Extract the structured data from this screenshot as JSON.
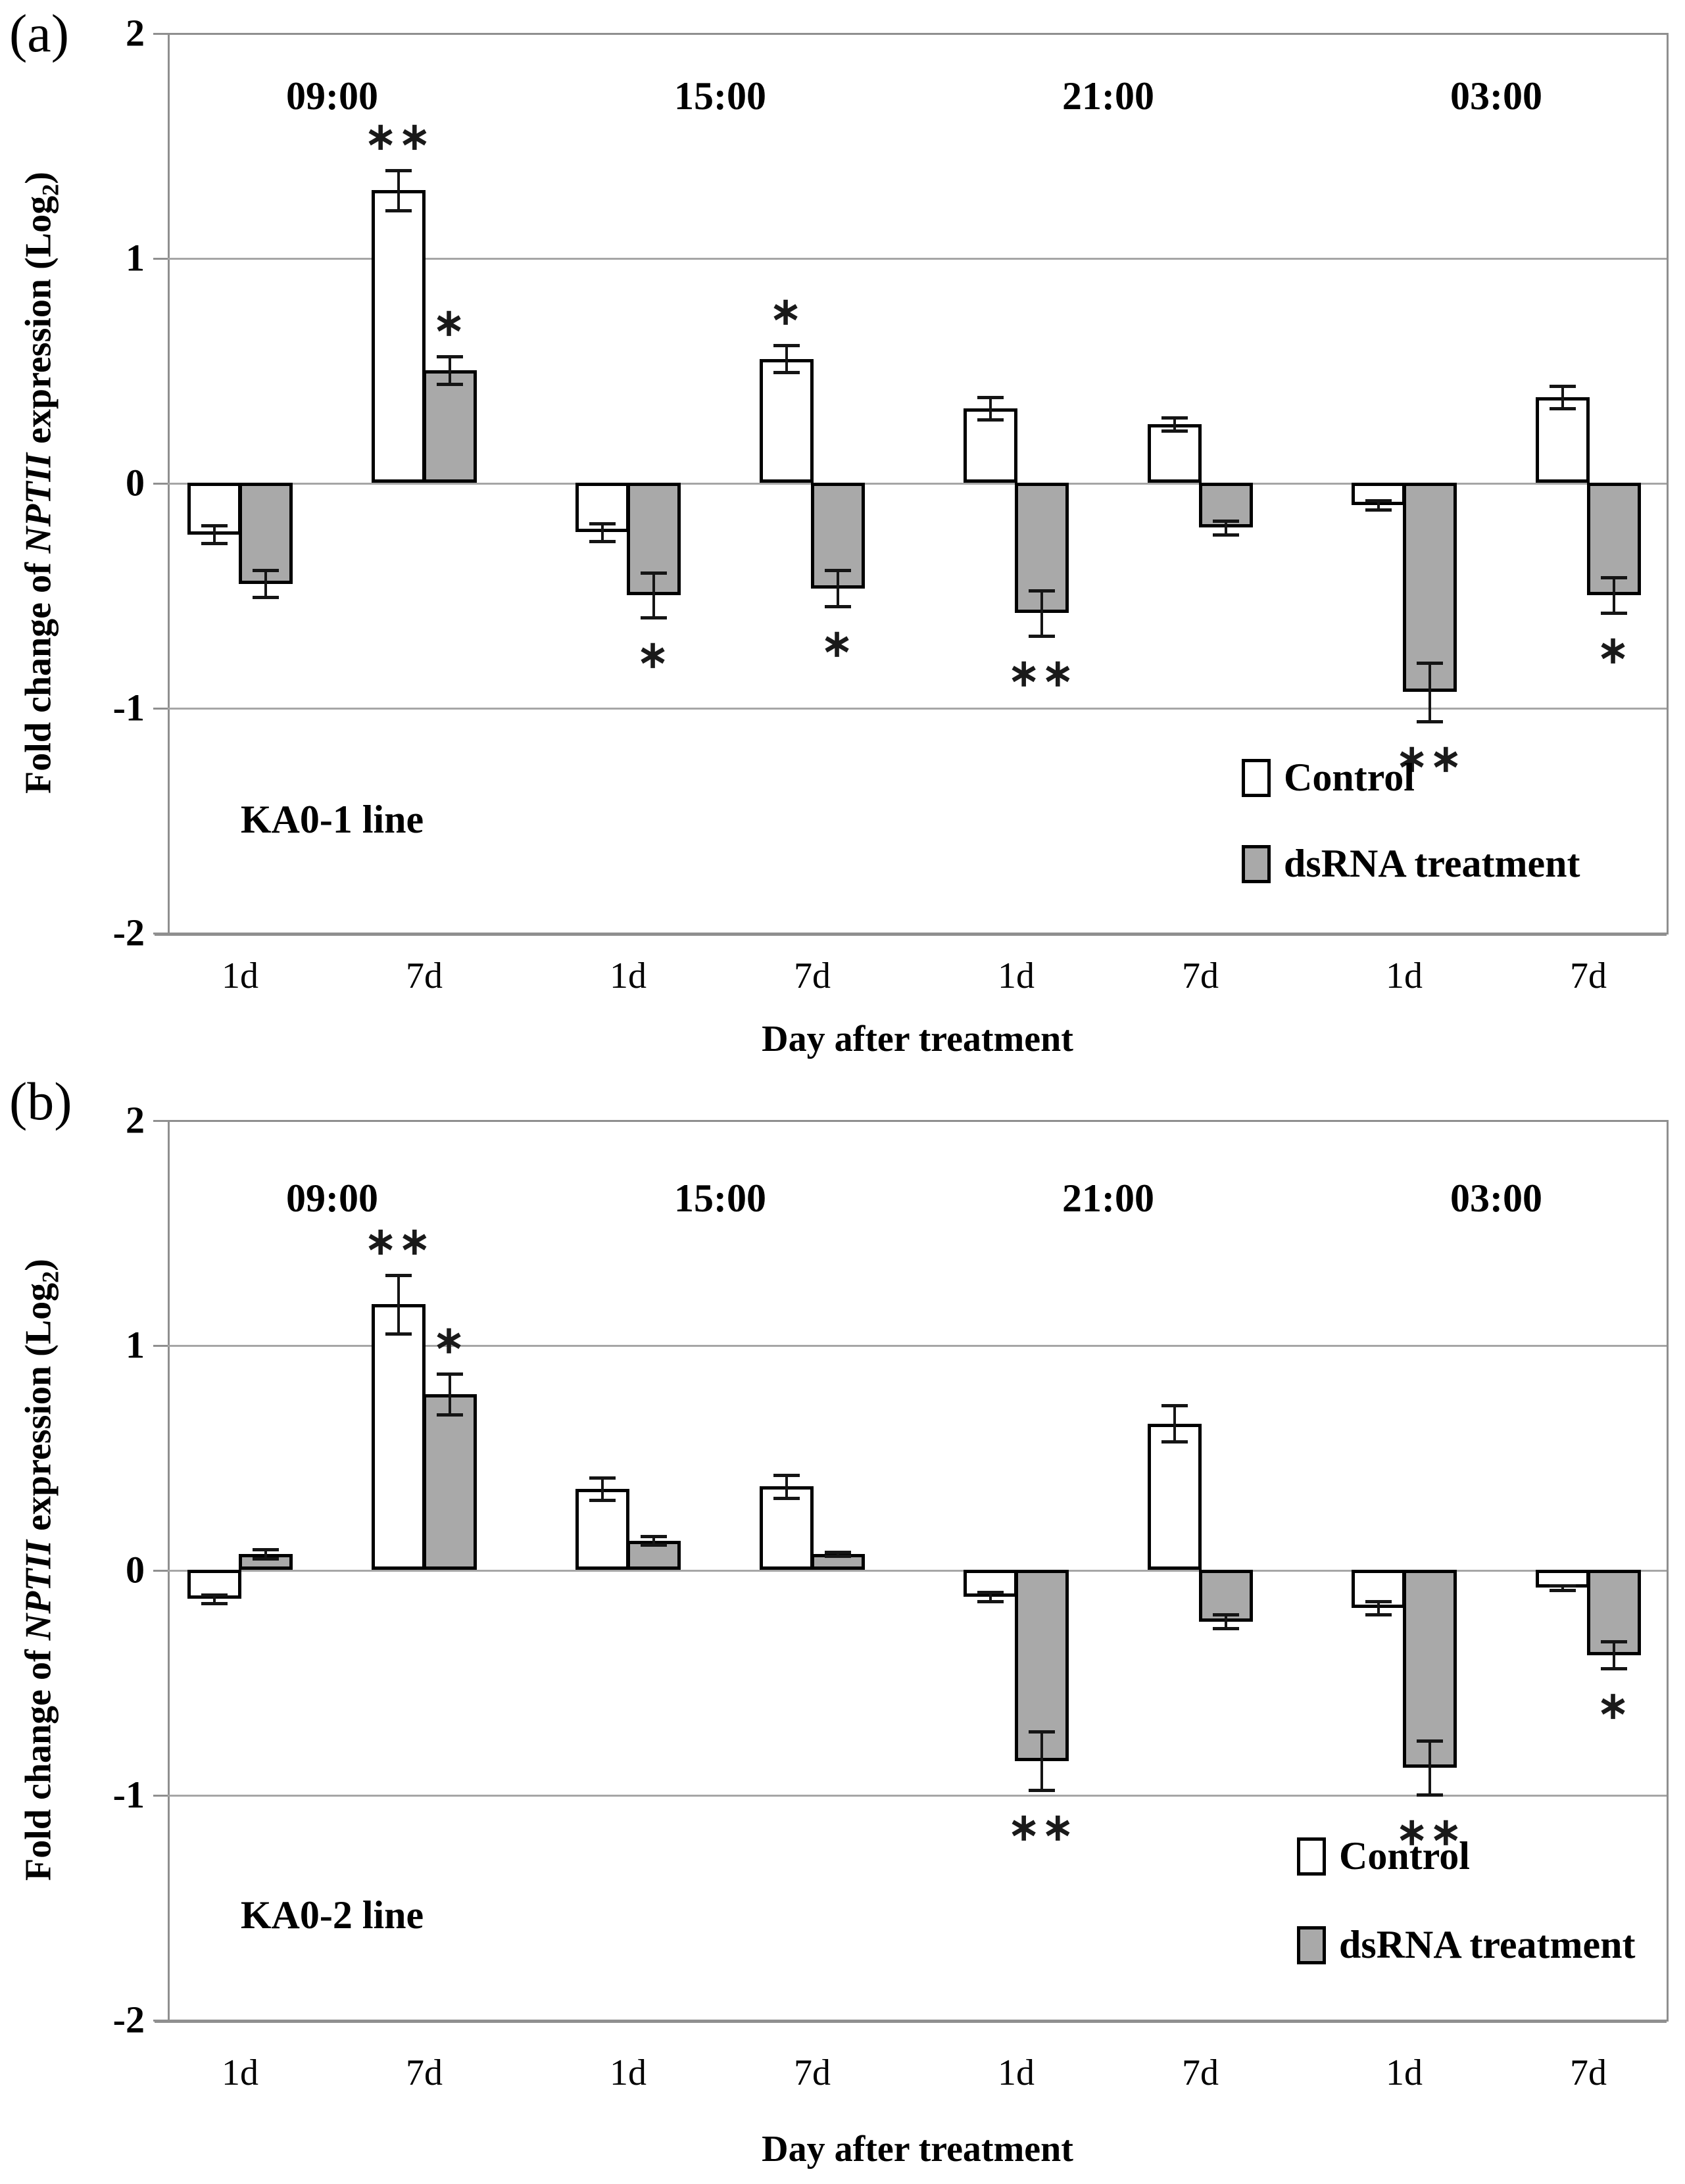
{
  "chart_data": [
    {
      "type": "bar",
      "panel_label": "(a)",
      "annotation": "KA0-1 line",
      "xlabel": "Day after treatment",
      "ylabel": "Fold change of NPTII expression (Log2)",
      "ylabel_parts": {
        "prefix": "Fold change of ",
        "gene": "NPTII",
        "mid": " expression (Log",
        "sub": "2",
        "suffix": ")"
      },
      "ylim": [
        -2,
        2
      ],
      "yticks": [
        "2",
        "1",
        "0",
        "-1",
        "-2"
      ],
      "grid": true,
      "legend_position": "inside right",
      "legend": [
        {
          "label": "Control",
          "fill": "#ffffff"
        },
        {
          "label": "dsRNA treatment",
          "fill": "#a9a9a9"
        }
      ],
      "day_categories": [
        "1d",
        "7d"
      ],
      "groups": [
        {
          "time": "09:00",
          "bars": [
            {
              "day": "1d",
              "series": "Control",
              "value": -0.23,
              "error": 0.04,
              "sig": ""
            },
            {
              "day": "1d",
              "series": "dsRNA treatment",
              "value": -0.45,
              "error": 0.06,
              "sig": ""
            },
            {
              "day": "7d",
              "series": "Control",
              "value": 1.3,
              "error": 0.09,
              "sig": "**"
            },
            {
              "day": "7d",
              "series": "dsRNA treatment",
              "value": 0.5,
              "error": 0.06,
              "sig": "*"
            }
          ]
        },
        {
          "time": "15:00",
          "bars": [
            {
              "day": "1d",
              "series": "Control",
              "value": -0.22,
              "error": 0.04,
              "sig": ""
            },
            {
              "day": "1d",
              "series": "dsRNA treatment",
              "value": -0.5,
              "error": 0.1,
              "sig": "*"
            },
            {
              "day": "7d",
              "series": "Control",
              "value": 0.55,
              "error": 0.06,
              "sig": "*"
            },
            {
              "day": "7d",
              "series": "dsRNA treatment",
              "value": -0.47,
              "error": 0.08,
              "sig": "*"
            }
          ]
        },
        {
          "time": "21:00",
          "bars": [
            {
              "day": "1d",
              "series": "Control",
              "value": 0.33,
              "error": 0.05,
              "sig": ""
            },
            {
              "day": "1d",
              "series": "dsRNA treatment",
              "value": -0.58,
              "error": 0.1,
              "sig": "**"
            },
            {
              "day": "7d",
              "series": "Control",
              "value": 0.26,
              "error": 0.03,
              "sig": ""
            },
            {
              "day": "7d",
              "series": "dsRNA treatment",
              "value": -0.2,
              "error": 0.03,
              "sig": ""
            }
          ]
        },
        {
          "time": "03:00",
          "bars": [
            {
              "day": "1d",
              "series": "Control",
              "value": -0.1,
              "error": 0.02,
              "sig": ""
            },
            {
              "day": "1d",
              "series": "dsRNA treatment",
              "value": -0.93,
              "error": 0.13,
              "sig": "**"
            },
            {
              "day": "7d",
              "series": "Control",
              "value": 0.38,
              "error": 0.05,
              "sig": ""
            },
            {
              "day": "7d",
              "series": "dsRNA treatment",
              "value": -0.5,
              "error": 0.08,
              "sig": "*"
            }
          ]
        }
      ]
    },
    {
      "type": "bar",
      "panel_label": "(b)",
      "annotation": "KA0-2 line",
      "xlabel": "Day after treatment",
      "ylabel": "Fold change of NPTII expression (Log2)",
      "ylabel_parts": {
        "prefix": "Fold change of ",
        "gene": "NPTII",
        "mid": " expression (Log",
        "sub": "2",
        "suffix": ")"
      },
      "ylim": [
        -2,
        2
      ],
      "yticks": [
        "2",
        "1",
        "0",
        "-1",
        "-2"
      ],
      "grid": true,
      "legend_position": "inside right",
      "legend": [
        {
          "label": "Control",
          "fill": "#ffffff"
        },
        {
          "label": "dsRNA treatment",
          "fill": "#a9a9a9"
        }
      ],
      "day_categories": [
        "1d",
        "7d"
      ],
      "groups": [
        {
          "time": "09:00",
          "bars": [
            {
              "day": "1d",
              "series": "Control",
              "value": -0.13,
              "error": 0.02,
              "sig": ""
            },
            {
              "day": "1d",
              "series": "dsRNA treatment",
              "value": 0.07,
              "error": 0.02,
              "sig": ""
            },
            {
              "day": "7d",
              "series": "Control",
              "value": 1.18,
              "error": 0.13,
              "sig": "**"
            },
            {
              "day": "7d",
              "series": "dsRNA treatment",
              "value": 0.78,
              "error": 0.09,
              "sig": "*"
            }
          ]
        },
        {
          "time": "15:00",
          "bars": [
            {
              "day": "1d",
              "series": "Control",
              "value": 0.36,
              "error": 0.05,
              "sig": ""
            },
            {
              "day": "1d",
              "series": "dsRNA treatment",
              "value": 0.13,
              "error": 0.02,
              "sig": ""
            },
            {
              "day": "7d",
              "series": "Control",
              "value": 0.37,
              "error": 0.05,
              "sig": ""
            },
            {
              "day": "7d",
              "series": "dsRNA treatment",
              "value": 0.07,
              "error": 0.01,
              "sig": ""
            }
          ]
        },
        {
          "time": "21:00",
          "bars": [
            {
              "day": "1d",
              "series": "Control",
              "value": -0.12,
              "error": 0.02,
              "sig": ""
            },
            {
              "day": "1d",
              "series": "dsRNA treatment",
              "value": -0.85,
              "error": 0.13,
              "sig": "**"
            },
            {
              "day": "7d",
              "series": "Control",
              "value": 0.65,
              "error": 0.08,
              "sig": ""
            },
            {
              "day": "7d",
              "series": "dsRNA treatment",
              "value": -0.23,
              "error": 0.03,
              "sig": ""
            }
          ]
        },
        {
          "time": "03:00",
          "bars": [
            {
              "day": "1d",
              "series": "Control",
              "value": -0.17,
              "error": 0.03,
              "sig": ""
            },
            {
              "day": "1d",
              "series": "dsRNA treatment",
              "value": -0.88,
              "error": 0.12,
              "sig": "**"
            },
            {
              "day": "7d",
              "series": "Control",
              "value": -0.08,
              "error": 0.01,
              "sig": ""
            },
            {
              "day": "7d",
              "series": "dsRNA treatment",
              "value": -0.38,
              "error": 0.06,
              "sig": "*"
            }
          ]
        }
      ]
    }
  ]
}
